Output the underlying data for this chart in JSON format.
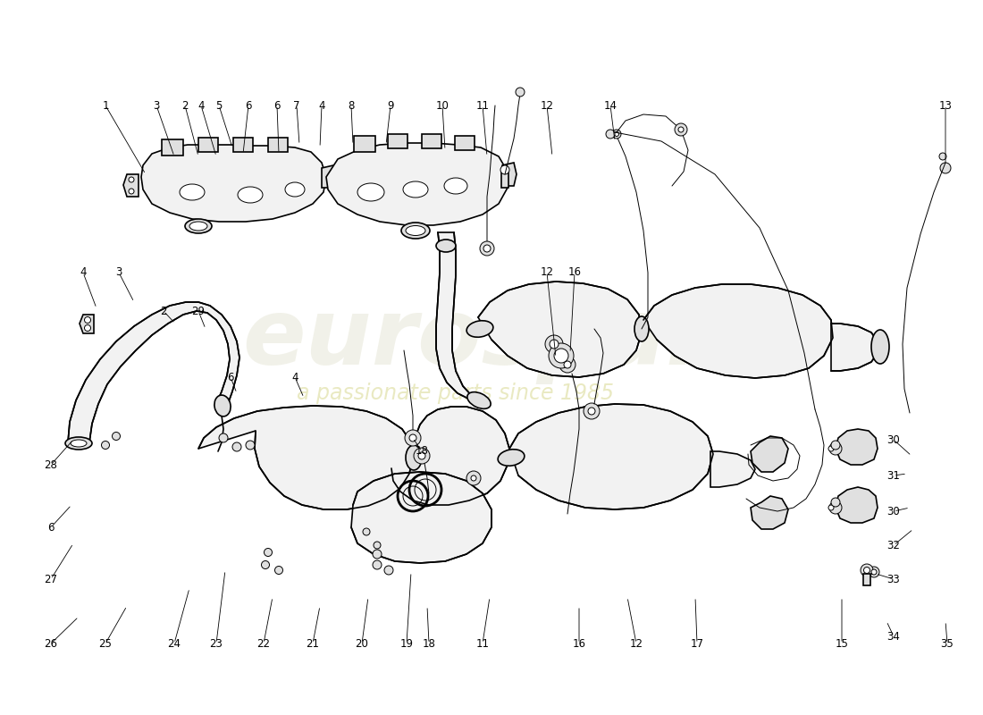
{
  "bg": "#ffffff",
  "lc": "#000000",
  "wm1": "eurospares",
  "wm2": "a passionate parts since 1985",
  "wm1_color": "#dedec8",
  "wm2_color": "#d8d890",
  "lw": 1.2,
  "lw_thin": 0.7,
  "num_fs": 8.5,
  "callouts": [
    [
      "1",
      118,
      118,
      163,
      195
    ],
    [
      "2",
      207,
      118,
      222,
      175
    ],
    [
      "3",
      175,
      118,
      195,
      175
    ],
    [
      "4",
      225,
      118,
      242,
      175
    ],
    [
      "5",
      245,
      118,
      260,
      165
    ],
    [
      "6",
      278,
      118,
      272,
      172
    ],
    [
      "7",
      332,
      118,
      335,
      162
    ],
    [
      "6",
      310,
      118,
      312,
      172
    ],
    [
      "4",
      360,
      118,
      358,
      165
    ],
    [
      "8",
      393,
      118,
      395,
      162
    ],
    [
      "9",
      437,
      118,
      432,
      162
    ],
    [
      "10",
      495,
      118,
      498,
      168
    ],
    [
      "11",
      540,
      118,
      545,
      175
    ],
    [
      "12",
      612,
      118,
      618,
      175
    ],
    [
      "14",
      683,
      118,
      688,
      158
    ],
    [
      "13",
      1058,
      118,
      1058,
      185
    ],
    [
      "3",
      133,
      305,
      150,
      338
    ],
    [
      "4",
      93,
      305,
      108,
      345
    ],
    [
      "2",
      183,
      348,
      196,
      362
    ],
    [
      "29",
      222,
      348,
      230,
      368
    ],
    [
      "6",
      258,
      422,
      265,
      440
    ],
    [
      "4",
      330,
      422,
      340,
      445
    ],
    [
      "12",
      612,
      305,
      622,
      400
    ],
    [
      "16",
      643,
      305,
      638,
      395
    ],
    [
      "18",
      472,
      505,
      462,
      490
    ],
    [
      "28",
      57,
      520,
      82,
      492
    ],
    [
      "6",
      57,
      590,
      80,
      565
    ],
    [
      "27",
      57,
      648,
      82,
      608
    ],
    [
      "26",
      57,
      720,
      88,
      690
    ],
    [
      "25",
      118,
      720,
      142,
      678
    ],
    [
      "24",
      195,
      720,
      212,
      658
    ],
    [
      "23",
      242,
      720,
      252,
      638
    ],
    [
      "22",
      295,
      720,
      305,
      668
    ],
    [
      "21",
      350,
      720,
      358,
      678
    ],
    [
      "20",
      405,
      720,
      412,
      668
    ],
    [
      "19",
      455,
      720,
      460,
      640
    ],
    [
      "18",
      480,
      720,
      478,
      678
    ],
    [
      "11",
      540,
      720,
      548,
      668
    ],
    [
      "16",
      648,
      720,
      648,
      678
    ],
    [
      "12",
      712,
      720,
      702,
      668
    ],
    [
      "17",
      780,
      720,
      778,
      668
    ],
    [
      "30",
      1000,
      492,
      1020,
      510
    ],
    [
      "31",
      1000,
      532,
      1015,
      530
    ],
    [
      "30",
      1000,
      572,
      1018,
      568
    ],
    [
      "32",
      1000,
      610,
      1022,
      592
    ],
    [
      "33",
      1000,
      648,
      980,
      642
    ],
    [
      "34",
      1000,
      712,
      992,
      695
    ],
    [
      "15",
      942,
      720,
      942,
      668
    ],
    [
      "35",
      1060,
      720,
      1058,
      695
    ]
  ]
}
